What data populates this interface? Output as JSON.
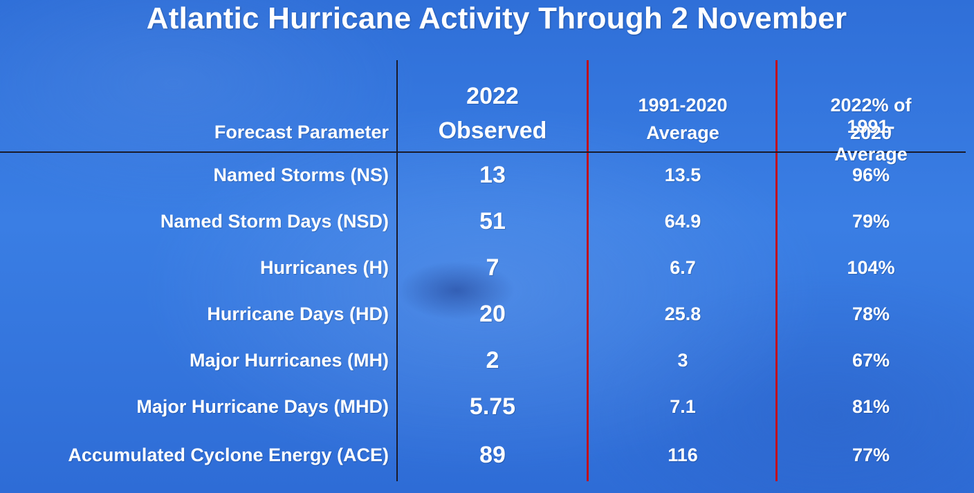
{
  "title": "Atlantic Hurricane Activity Through 2 November",
  "chart_data": {
    "type": "table",
    "columns": [
      "Forecast Parameter",
      "2022 Observed",
      "1991-2020 Average",
      "2022% of 1991-2020 Average"
    ],
    "header_lines": {
      "param": [
        "Forecast Parameter"
      ],
      "observed": [
        "2022",
        "Observed"
      ],
      "average": [
        "1991-2020",
        "Average"
      ],
      "percent": [
        "2022% of 1991-",
        "2020 Average"
      ]
    },
    "rows": [
      {
        "parameter": "Named Storms (NS)",
        "observed": "13",
        "average": "13.5",
        "percent": "96%"
      },
      {
        "parameter": "Named Storm Days (NSD)",
        "observed": "51",
        "average": "64.9",
        "percent": "79%"
      },
      {
        "parameter": "Hurricanes (H)",
        "observed": "7",
        "average": "6.7",
        "percent": "104%"
      },
      {
        "parameter": "Hurricane Days (HD)",
        "observed": "20",
        "average": "25.8",
        "percent": "78%"
      },
      {
        "parameter": "Major Hurricanes (MH)",
        "observed": "2",
        "average": "3",
        "percent": "67%"
      },
      {
        "parameter": "Major Hurricane Days (MHD)",
        "observed": "5.75",
        "average": "7.1",
        "percent": "81%"
      },
      {
        "parameter": "Accumulated Cyclone Energy (ACE)",
        "observed": "89",
        "average": "116",
        "percent": "77%"
      }
    ]
  },
  "colors": {
    "background": "#3a7ee4",
    "text": "#ffffff",
    "divider_black": "#1a1a2a",
    "divider_red": "#c0101a"
  }
}
